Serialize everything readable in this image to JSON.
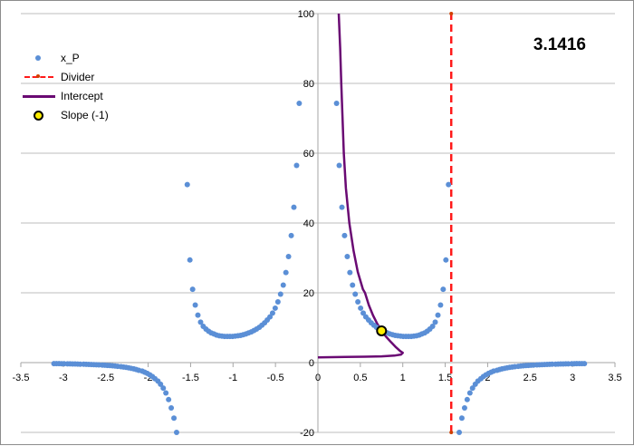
{
  "annotation": "3.1416",
  "legend": [
    {
      "label": "x_P",
      "marker": "dot",
      "color": "#5b8fd6"
    },
    {
      "label": "Divider",
      "marker": "dashed-line",
      "color": "#ff1a1a"
    },
    {
      "label": "Intercept",
      "marker": "line",
      "color": "#6a0a73"
    },
    {
      "label": "Slope (-1)",
      "marker": "ring",
      "color": "#ffee00"
    }
  ],
  "chart_data": {
    "type": "scatter",
    "title": "",
    "xlabel": "",
    "ylabel": "",
    "xlim": [
      -3.5,
      3.5
    ],
    "ylim": [
      -20,
      100
    ],
    "x_ticks": [
      -3.5,
      -3,
      -2.5,
      -2,
      -1.5,
      -1,
      -0.5,
      0,
      0.5,
      1,
      1.5,
      2,
      2.5,
      3,
      3.5
    ],
    "x_tick_labels": [
      "-3.5",
      "-3",
      "-2.5",
      "-2",
      "-1.5",
      "-1",
      "-0.5",
      "0",
      "0.5",
      "1",
      "1.5",
      "2",
      "2.5",
      "3",
      "3.5"
    ],
    "y_ticks": [
      -20,
      0,
      20,
      40,
      60,
      80,
      100
    ],
    "y_tick_labels": [
      "-20",
      "0",
      "20",
      "40",
      "60",
      "80",
      "100"
    ],
    "grid": "horizontal",
    "legend_position": "upper-left",
    "annotation": "3.1416",
    "series": [
      {
        "name": "x_P",
        "type": "scatter",
        "color": "#5b8fd6",
        "points": [
          [
            -3.11,
            -0.3
          ],
          [
            -3.08,
            -0.3
          ],
          [
            -3.05,
            -0.3
          ],
          [
            -3.02,
            -0.32
          ],
          [
            -2.99,
            -0.33
          ],
          [
            -2.95,
            -0.35
          ],
          [
            -2.92,
            -0.36
          ],
          [
            -2.89,
            -0.38
          ],
          [
            -2.86,
            -0.4
          ],
          [
            -2.83,
            -0.42
          ],
          [
            -2.8,
            -0.44
          ],
          [
            -2.76,
            -0.46
          ],
          [
            -2.73,
            -0.49
          ],
          [
            -2.7,
            -0.52
          ],
          [
            -2.67,
            -0.55
          ],
          [
            -2.64,
            -0.58
          ],
          [
            -2.61,
            -0.62
          ],
          [
            -2.58,
            -0.66
          ],
          [
            -2.54,
            -0.7
          ],
          [
            -2.51,
            -0.75
          ],
          [
            -2.48,
            -0.8
          ],
          [
            -2.45,
            -0.86
          ],
          [
            -2.42,
            -0.92
          ],
          [
            -2.39,
            -0.99
          ],
          [
            -2.36,
            -1.07
          ],
          [
            -2.32,
            -1.16
          ],
          [
            -2.29,
            -1.26
          ],
          [
            -2.26,
            -1.37
          ],
          [
            -2.23,
            -1.5
          ],
          [
            -2.2,
            -1.64
          ],
          [
            -2.17,
            -1.8
          ],
          [
            -2.14,
            -1.99
          ],
          [
            -2.11,
            -2.2
          ],
          [
            -2.07,
            -2.45
          ],
          [
            -2.04,
            -2.75
          ],
          [
            -2.01,
            -3.1
          ],
          [
            -1.98,
            -3.5
          ],
          [
            -1.95,
            -4.0
          ],
          [
            -1.92,
            -4.6
          ],
          [
            -1.885,
            -5.3
          ],
          [
            -1.854,
            -6.2
          ],
          [
            -1.822,
            -7.3
          ],
          [
            -1.791,
            -8.7
          ],
          [
            -1.759,
            -10.6
          ],
          [
            -1.728,
            -13.0
          ],
          [
            -1.696,
            -15.9
          ],
          [
            -1.665,
            -20
          ],
          [
            -1.539,
            51
          ],
          [
            -1.508,
            29.4
          ],
          [
            -1.476,
            21.0
          ],
          [
            -1.445,
            16.5
          ],
          [
            -1.414,
            13.6
          ],
          [
            -1.382,
            11.6
          ],
          [
            -1.351,
            10.4
          ],
          [
            -1.319,
            9.6
          ],
          [
            -1.288,
            9.0
          ],
          [
            -1.257,
            8.5
          ],
          [
            -1.225,
            8.2
          ],
          [
            -1.194,
            7.9
          ],
          [
            -1.162,
            7.7
          ],
          [
            -1.131,
            7.6
          ],
          [
            -1.1,
            7.5
          ],
          [
            -1.068,
            7.5
          ],
          [
            -1.037,
            7.5
          ],
          [
            -1.005,
            7.5
          ],
          [
            -0.974,
            7.6
          ],
          [
            -0.942,
            7.7
          ],
          [
            -0.911,
            7.8
          ],
          [
            -0.88,
            8.0
          ],
          [
            -0.848,
            8.2
          ],
          [
            -0.817,
            8.5
          ],
          [
            -0.785,
            8.8
          ],
          [
            -0.754,
            9.2
          ],
          [
            -0.723,
            9.6
          ],
          [
            -0.691,
            10.1
          ],
          [
            -0.66,
            10.7
          ],
          [
            -0.628,
            11.4
          ],
          [
            -0.597,
            12.2
          ],
          [
            -0.565,
            13.1
          ],
          [
            -0.534,
            14.2
          ],
          [
            -0.503,
            15.6
          ],
          [
            -0.471,
            17.4
          ],
          [
            -0.44,
            19.6
          ],
          [
            -0.408,
            22.2
          ],
          [
            -0.377,
            25.8
          ],
          [
            -0.346,
            30.4
          ],
          [
            -0.314,
            36.4
          ],
          [
            -0.283,
            44.5
          ],
          [
            -0.251,
            56.5
          ],
          [
            -0.22,
            74.3
          ],
          [
            0.22,
            74.3
          ],
          [
            0.251,
            56.5
          ],
          [
            0.283,
            44.5
          ],
          [
            0.314,
            36.4
          ],
          [
            0.346,
            30.4
          ],
          [
            0.377,
            25.8
          ],
          [
            0.408,
            22.2
          ],
          [
            0.44,
            19.6
          ],
          [
            0.471,
            17.4
          ],
          [
            0.503,
            15.6
          ],
          [
            0.534,
            14.2
          ],
          [
            0.565,
            13.1
          ],
          [
            0.597,
            12.2
          ],
          [
            0.628,
            11.4
          ],
          [
            0.66,
            10.7
          ],
          [
            0.691,
            10.1
          ],
          [
            0.723,
            9.6
          ],
          [
            0.754,
            9.2
          ],
          [
            0.785,
            8.8
          ],
          [
            0.817,
            8.5
          ],
          [
            0.848,
            8.2
          ],
          [
            0.88,
            8.0
          ],
          [
            0.911,
            7.8
          ],
          [
            0.942,
            7.7
          ],
          [
            0.974,
            7.6
          ],
          [
            1.005,
            7.5
          ],
          [
            1.037,
            7.5
          ],
          [
            1.068,
            7.5
          ],
          [
            1.1,
            7.5
          ],
          [
            1.131,
            7.6
          ],
          [
            1.162,
            7.7
          ],
          [
            1.194,
            7.9
          ],
          [
            1.225,
            8.2
          ],
          [
            1.257,
            8.5
          ],
          [
            1.288,
            9.0
          ],
          [
            1.319,
            9.6
          ],
          [
            1.351,
            10.4
          ],
          [
            1.382,
            11.6
          ],
          [
            1.414,
            13.6
          ],
          [
            1.445,
            16.5
          ],
          [
            1.476,
            21.0
          ],
          [
            1.508,
            29.4
          ],
          [
            1.539,
            51
          ],
          [
            1.665,
            -20
          ],
          [
            1.696,
            -15.9
          ],
          [
            1.728,
            -13.0
          ],
          [
            1.759,
            -10.6
          ],
          [
            1.791,
            -8.7
          ],
          [
            1.822,
            -7.3
          ],
          [
            1.854,
            -6.2
          ],
          [
            1.885,
            -5.3
          ],
          [
            1.92,
            -4.6
          ],
          [
            1.95,
            -4.0
          ],
          [
            1.98,
            -3.5
          ],
          [
            2.01,
            -3.1
          ],
          [
            2.04,
            -2.75
          ],
          [
            2.07,
            -2.45
          ],
          [
            2.11,
            -2.2
          ],
          [
            2.14,
            -1.99
          ],
          [
            2.17,
            -1.8
          ],
          [
            2.2,
            -1.64
          ],
          [
            2.23,
            -1.5
          ],
          [
            2.26,
            -1.37
          ],
          [
            2.29,
            -1.26
          ],
          [
            2.32,
            -1.16
          ],
          [
            2.36,
            -1.07
          ],
          [
            2.39,
            -0.99
          ],
          [
            2.42,
            -0.92
          ],
          [
            2.45,
            -0.86
          ],
          [
            2.48,
            -0.8
          ],
          [
            2.51,
            -0.75
          ],
          [
            2.54,
            -0.7
          ],
          [
            2.58,
            -0.66
          ],
          [
            2.61,
            -0.62
          ],
          [
            2.64,
            -0.58
          ],
          [
            2.67,
            -0.55
          ],
          [
            2.7,
            -0.52
          ],
          [
            2.73,
            -0.49
          ],
          [
            2.76,
            -0.46
          ],
          [
            2.8,
            -0.44
          ],
          [
            2.83,
            -0.42
          ],
          [
            2.86,
            -0.4
          ],
          [
            2.89,
            -0.38
          ],
          [
            2.92,
            -0.36
          ],
          [
            2.95,
            -0.35
          ],
          [
            2.99,
            -0.33
          ],
          [
            3.02,
            -0.32
          ],
          [
            3.05,
            -0.3
          ],
          [
            3.08,
            -0.3
          ],
          [
            3.11,
            -0.3
          ],
          [
            3.14,
            -0.3
          ]
        ]
      },
      {
        "name": "Divider",
        "type": "line",
        "style": "dashed",
        "color": "#ff1a1a",
        "points": [
          [
            1.5708,
            -20
          ],
          [
            1.5708,
            100
          ]
        ]
      },
      {
        "name": "Intercept",
        "type": "line",
        "color": "#6a0a73",
        "points": [
          [
            0.245,
            100
          ],
          [
            0.262,
            90
          ],
          [
            0.275,
            80
          ],
          [
            0.29,
            70
          ],
          [
            0.305,
            60
          ],
          [
            0.33,
            50
          ],
          [
            0.37,
            40
          ],
          [
            0.42,
            32
          ],
          [
            0.47,
            26
          ],
          [
            0.53,
            21
          ],
          [
            0.555,
            20
          ],
          [
            0.6,
            16.5
          ],
          [
            0.65,
            13.5
          ],
          [
            0.7,
            11.1
          ],
          [
            0.75,
            9.1
          ],
          [
            0.8,
            7.5
          ],
          [
            0.86,
            5.9
          ],
          [
            0.92,
            4.4
          ],
          [
            0.97,
            3.3
          ],
          [
            1.0,
            2.8
          ],
          [
            0.98,
            2.3
          ],
          [
            0.9,
            2.0
          ],
          [
            0.75,
            1.8
          ],
          [
            0.55,
            1.7
          ],
          [
            0.32,
            1.6
          ],
          [
            0.0,
            1.5
          ]
        ]
      },
      {
        "name": "Slope (-1)",
        "type": "scatter",
        "marker": "ring",
        "color": "#ffee00",
        "points": [
          [
            0.75,
            9.1
          ]
        ]
      }
    ]
  }
}
